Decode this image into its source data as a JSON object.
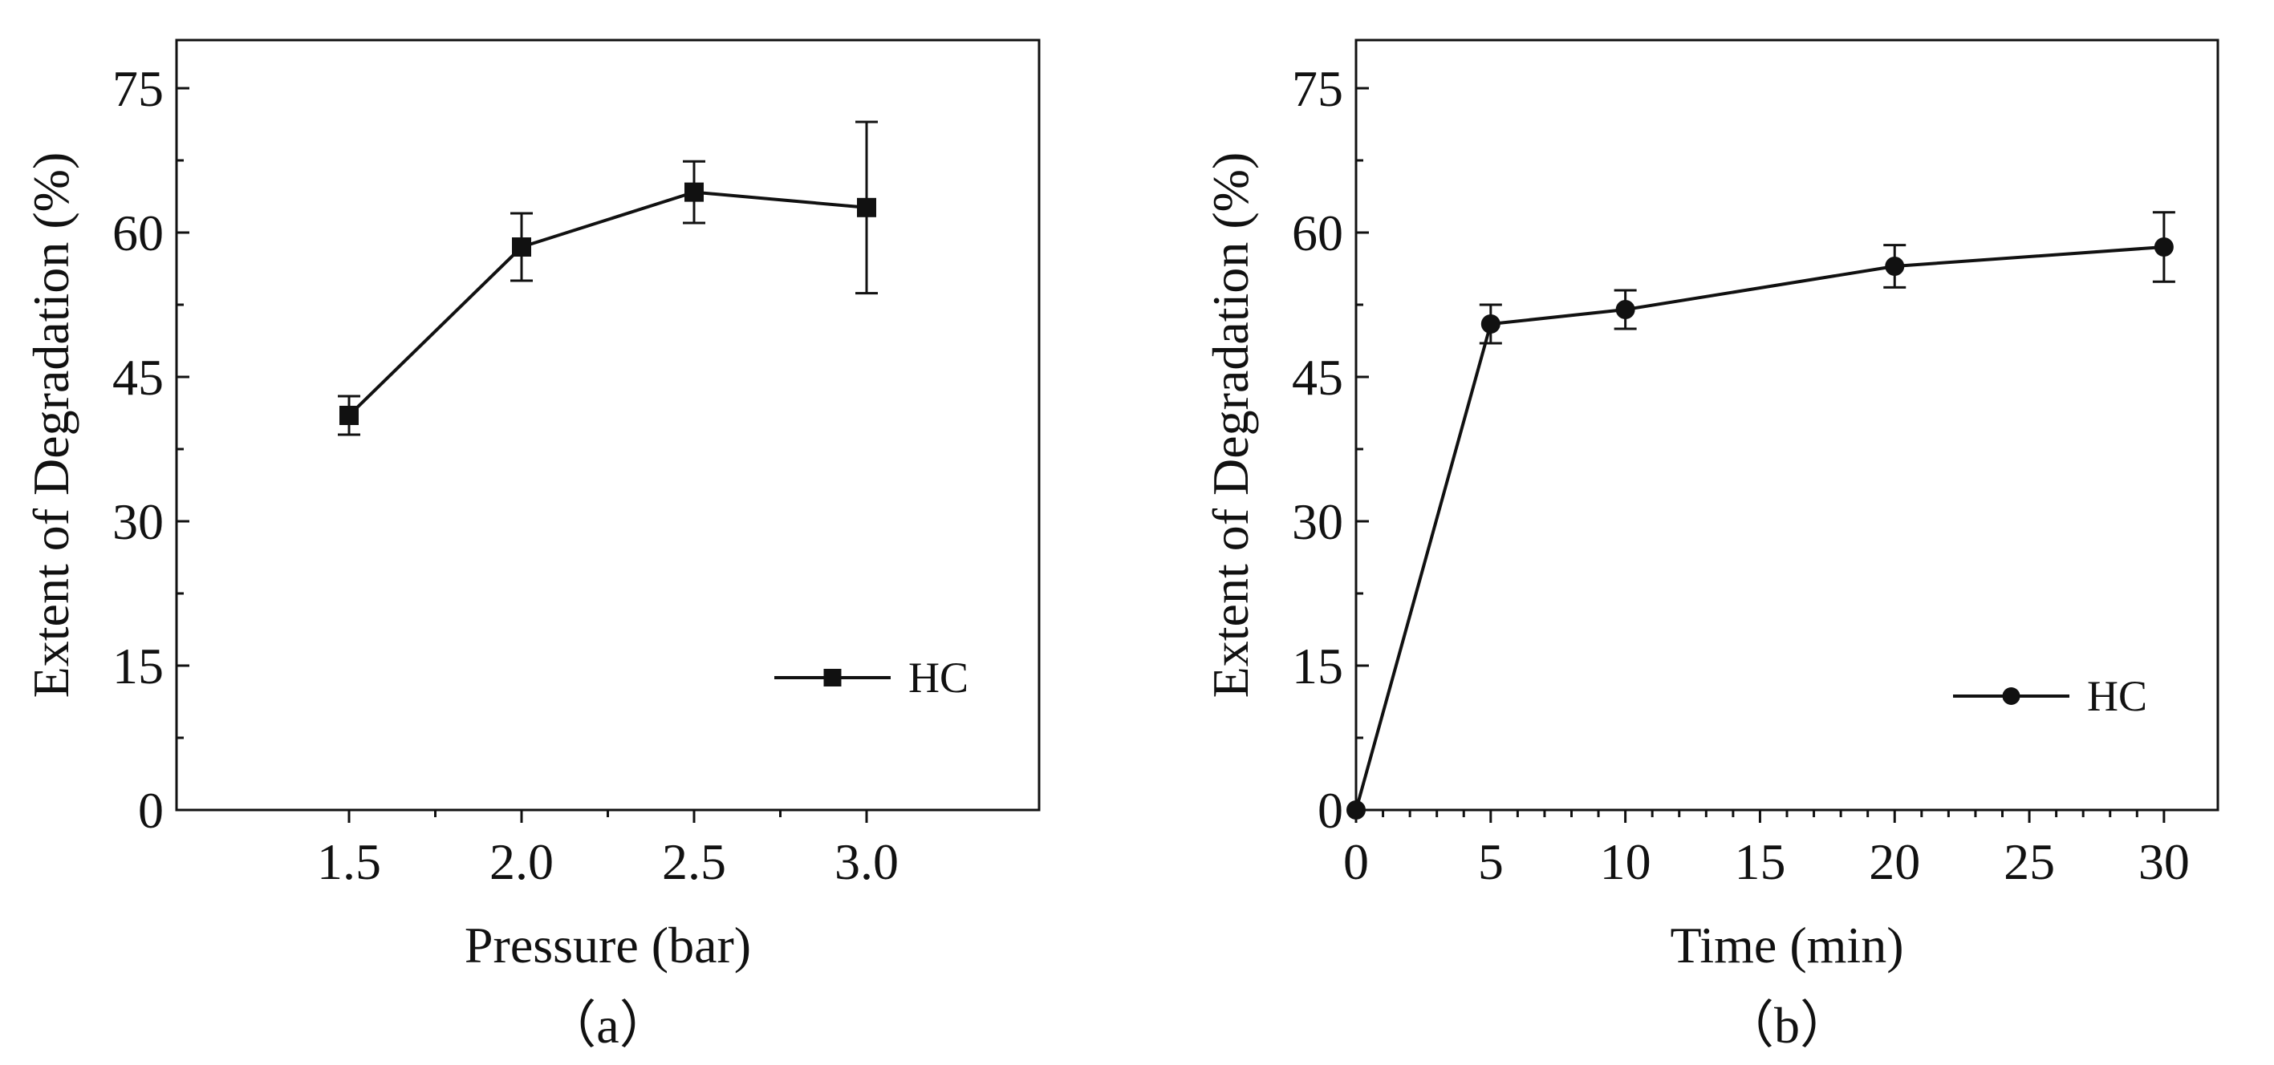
{
  "figure": {
    "panels": [
      {
        "panel_label": "（a）"
      },
      {
        "panel_label": "（b）"
      }
    ]
  },
  "chart_data": [
    {
      "type": "line",
      "marker": "square",
      "xlabel": "Pressure (bar)",
      "ylabel": "Extent of Degradation (%)",
      "xlim": [
        1.0,
        3.5
      ],
      "ylim": [
        0,
        80
      ],
      "xticks": [
        1.5,
        2.0,
        2.5,
        3.0
      ],
      "xtick_labels": [
        "1.5",
        "2.0",
        "2.5",
        "3.0"
      ],
      "yticks": [
        0,
        15,
        30,
        45,
        60,
        75
      ],
      "ytick_labels": [
        "0",
        "15",
        "30",
        "45",
        "60",
        "75"
      ],
      "legend": {
        "position": "bottom-right",
        "entries": [
          "HC"
        ]
      },
      "series": [
        {
          "name": "HC",
          "x": [
            1.5,
            2.0,
            2.5,
            3.0
          ],
          "values": [
            41.0,
            58.5,
            64.2,
            62.6
          ],
          "error": [
            2.0,
            3.5,
            3.2,
            8.9
          ]
        }
      ]
    },
    {
      "type": "line",
      "marker": "circle",
      "xlabel": "Time (min)",
      "ylabel": "Extent of Degradation (%)",
      "xlim": [
        0,
        32
      ],
      "ylim": [
        0,
        80
      ],
      "xticks": [
        0,
        5,
        10,
        15,
        20,
        25,
        30
      ],
      "xtick_labels": [
        "0",
        "5",
        "10",
        "15",
        "20",
        "25",
        "30"
      ],
      "yticks": [
        0,
        15,
        30,
        45,
        60,
        75
      ],
      "ytick_labels": [
        "0",
        "15",
        "30",
        "45",
        "60",
        "75"
      ],
      "legend": {
        "position": "bottom-right",
        "entries": [
          "HC"
        ]
      },
      "series": [
        {
          "name": "HC",
          "x": [
            0,
            5,
            10,
            20,
            30
          ],
          "values": [
            0,
            50.5,
            52.0,
            56.5,
            58.5
          ],
          "error": [
            0,
            2.0,
            2.0,
            2.2,
            3.6
          ]
        }
      ]
    }
  ]
}
